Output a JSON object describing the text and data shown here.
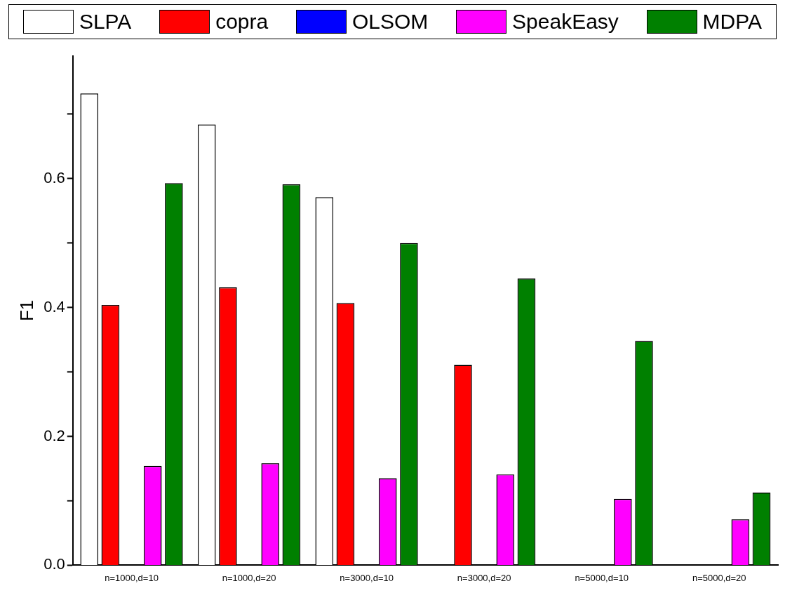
{
  "chart_data": {
    "type": "bar",
    "ylabel": "F1",
    "categories": [
      "n=1000,d=10",
      "n=1000,d=20",
      "n=3000,d=10",
      "n=3000,d=20",
      "n=5000,d=10",
      "n=5000,d=20"
    ],
    "series": [
      {
        "name": "SLPA",
        "color": "#ffffff",
        "values": [
          0.732,
          0.684,
          0.571,
          0,
          0,
          0
        ]
      },
      {
        "name": "copra",
        "color": "#ff0000",
        "values": [
          0.404,
          0.431,
          0.407,
          0.311,
          0,
          0
        ]
      },
      {
        "name": "OLSOM",
        "color": "#0000ff",
        "values": [
          0,
          0,
          0,
          0,
          0,
          0
        ]
      },
      {
        "name": "SpeakEasy",
        "color": "#ff00ff",
        "values": [
          0.154,
          0.158,
          0.135,
          0.141,
          0.103,
          0.071
        ]
      },
      {
        "name": "MDPA",
        "color": "#008000",
        "values": [
          0.593,
          0.591,
          0.5,
          0.445,
          0.348,
          0.113
        ]
      }
    ],
    "ylim": [
      0,
      0.79
    ],
    "yticks": [
      {
        "value": 0,
        "label": "0.0"
      },
      {
        "value": 0.1,
        "label": null
      },
      {
        "value": 0.2,
        "label": "0.2"
      },
      {
        "value": 0.3,
        "label": null
      },
      {
        "value": 0.4,
        "label": "0.4"
      },
      {
        "value": 0.5,
        "label": null
      },
      {
        "value": 0.6,
        "label": "0.6"
      },
      {
        "value": 0.7,
        "label": null
      }
    ],
    "grid": false,
    "legend": "top"
  }
}
